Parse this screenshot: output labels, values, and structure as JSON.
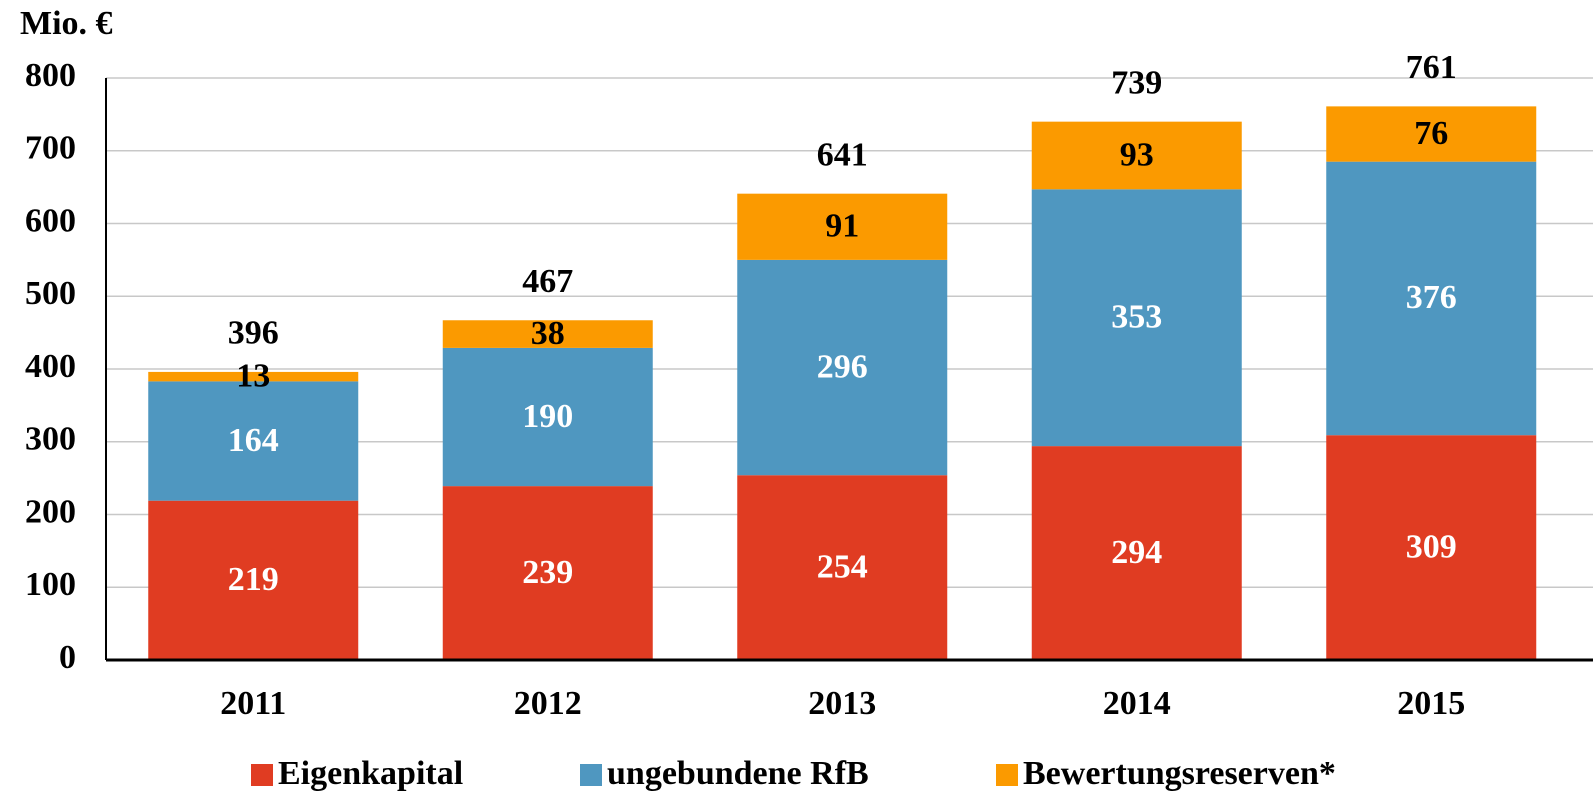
{
  "chart_data": {
    "type": "stacked_bar",
    "y_label": "Mio. €",
    "categories": [
      "2011",
      "2012",
      "2013",
      "2014",
      "2015"
    ],
    "series": [
      {
        "name": "Eigenkapital",
        "color": "#e03c22",
        "label_color": "#ffffff",
        "values": [
          219,
          239,
          254,
          294,
          309
        ]
      },
      {
        "name": "ungebundene RfB",
        "color": "#4f97c0",
        "label_color": "#ffffff",
        "values": [
          164,
          190,
          296,
          353,
          376
        ]
      },
      {
        "name": "Bewertungsreserven*",
        "color": "#fb9a00",
        "label_color": "#000000",
        "values": [
          13,
          38,
          91,
          93,
          76
        ]
      }
    ],
    "totals": [
      396,
      467,
      641,
      739,
      761
    ],
    "ylim": [
      0,
      800
    ],
    "yticks": [
      0,
      100,
      200,
      300,
      400,
      500,
      600,
      700,
      800
    ],
    "grid": true
  }
}
